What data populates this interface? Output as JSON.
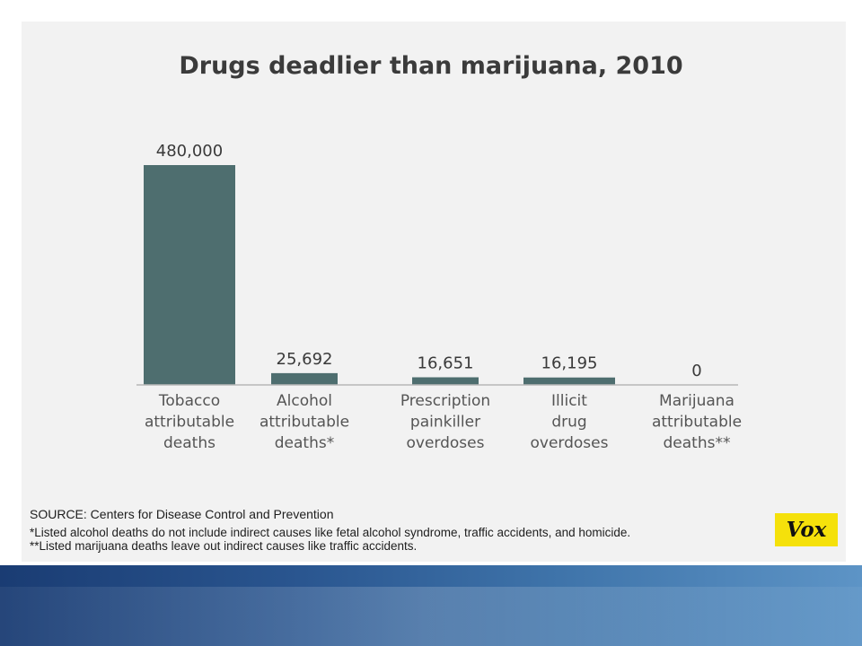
{
  "chart_data": {
    "type": "bar",
    "title": "Drugs deadlier than marijuana, 2010",
    "categories": [
      [
        "Tobacco",
        "attributable",
        "deaths"
      ],
      [
        "Alcohol",
        "attributable",
        "deaths*"
      ],
      [
        "Prescription",
        "painkiller",
        "overdoses"
      ],
      [
        "Illicit",
        "drug",
        "overdoses"
      ],
      [
        "Marijuana",
        "attributable",
        "deaths**"
      ]
    ],
    "values": [
      480000,
      25692,
      16651,
      16195,
      0
    ],
    "value_labels": [
      "480,000",
      "25,692",
      "16,651",
      "16,195",
      "0"
    ],
    "ylim": [
      0,
      480000
    ],
    "bar_color": "#4e6e6f",
    "grid": false,
    "legend": "none"
  },
  "notes": {
    "source": "SOURCE: Centers for Disease Control and Prevention",
    "footnote1": "*Listed alcohol deaths do not include indirect causes like fetal alcohol syndrome, traffic accidents, and homicide.",
    "footnote2": "**Listed marijuana deaths leave out indirect causes like traffic accidents."
  },
  "logo": {
    "text": "Vox",
    "color": "#f5e10b"
  }
}
